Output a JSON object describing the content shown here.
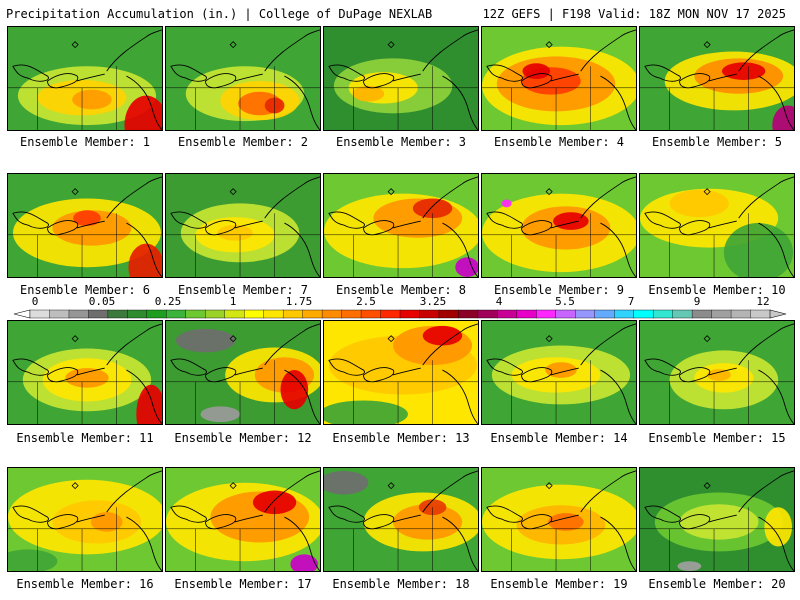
{
  "header": {
    "title": "Precipitation Accumulation (in.) | College of DuPage NEXLAB",
    "run_info": "12Z GEFS | F198 Valid: 18Z MON NOV 17 2025"
  },
  "color_scale": {
    "ticks": [
      "0",
      "0.05",
      "0.25",
      "1",
      "1.75",
      "2.5",
      "3.25",
      "4",
      "5.5",
      "7",
      "9",
      "12"
    ],
    "colors": [
      "#dcdcdc",
      "#bebebe",
      "#969696",
      "#6e6e6e",
      "#3c7a3c",
      "#2e8b2e",
      "#1e9e1e",
      "#3cb43c",
      "#6ec832",
      "#9bd228",
      "#d2e614",
      "#ffff00",
      "#ffe600",
      "#ffc800",
      "#ffaa00",
      "#ff8c00",
      "#ff6e00",
      "#ff5000",
      "#ff2800",
      "#e60000",
      "#c80000",
      "#a00000",
      "#8c0028",
      "#a0005a",
      "#c80096",
      "#e600c8",
      "#ff28ff",
      "#c864ff",
      "#9696ff",
      "#64aaff",
      "#32d2ff",
      "#00ffff",
      "#32e6d2",
      "#64c8b4",
      "#8c8c8c",
      "#a0a0a0",
      "#b4b4b4",
      "#c8c8c8"
    ]
  },
  "members": [
    {
      "label": "Ensemble Member: 1"
    },
    {
      "label": "Ensemble Member: 2"
    },
    {
      "label": "Ensemble Member: 3"
    },
    {
      "label": "Ensemble Member: 4"
    },
    {
      "label": "Ensemble Member: 5"
    },
    {
      "label": "Ensemble Member: 6"
    },
    {
      "label": "Ensemble Member: 7"
    },
    {
      "label": "Ensemble Member: 8"
    },
    {
      "label": "Ensemble Member: 9"
    },
    {
      "label": "Ensemble Member: 10"
    },
    {
      "label": "Ensemble Member: 11"
    },
    {
      "label": "Ensemble Member: 12"
    },
    {
      "label": "Ensemble Member: 13"
    },
    {
      "label": "Ensemble Member: 14"
    },
    {
      "label": "Ensemble Member: 15"
    },
    {
      "label": "Ensemble Member: 16"
    },
    {
      "label": "Ensemble Member: 17"
    },
    {
      "label": "Ensemble Member: 18"
    },
    {
      "label": "Ensemble Member: 19"
    },
    {
      "label": "Ensemble Member: 20"
    }
  ]
}
